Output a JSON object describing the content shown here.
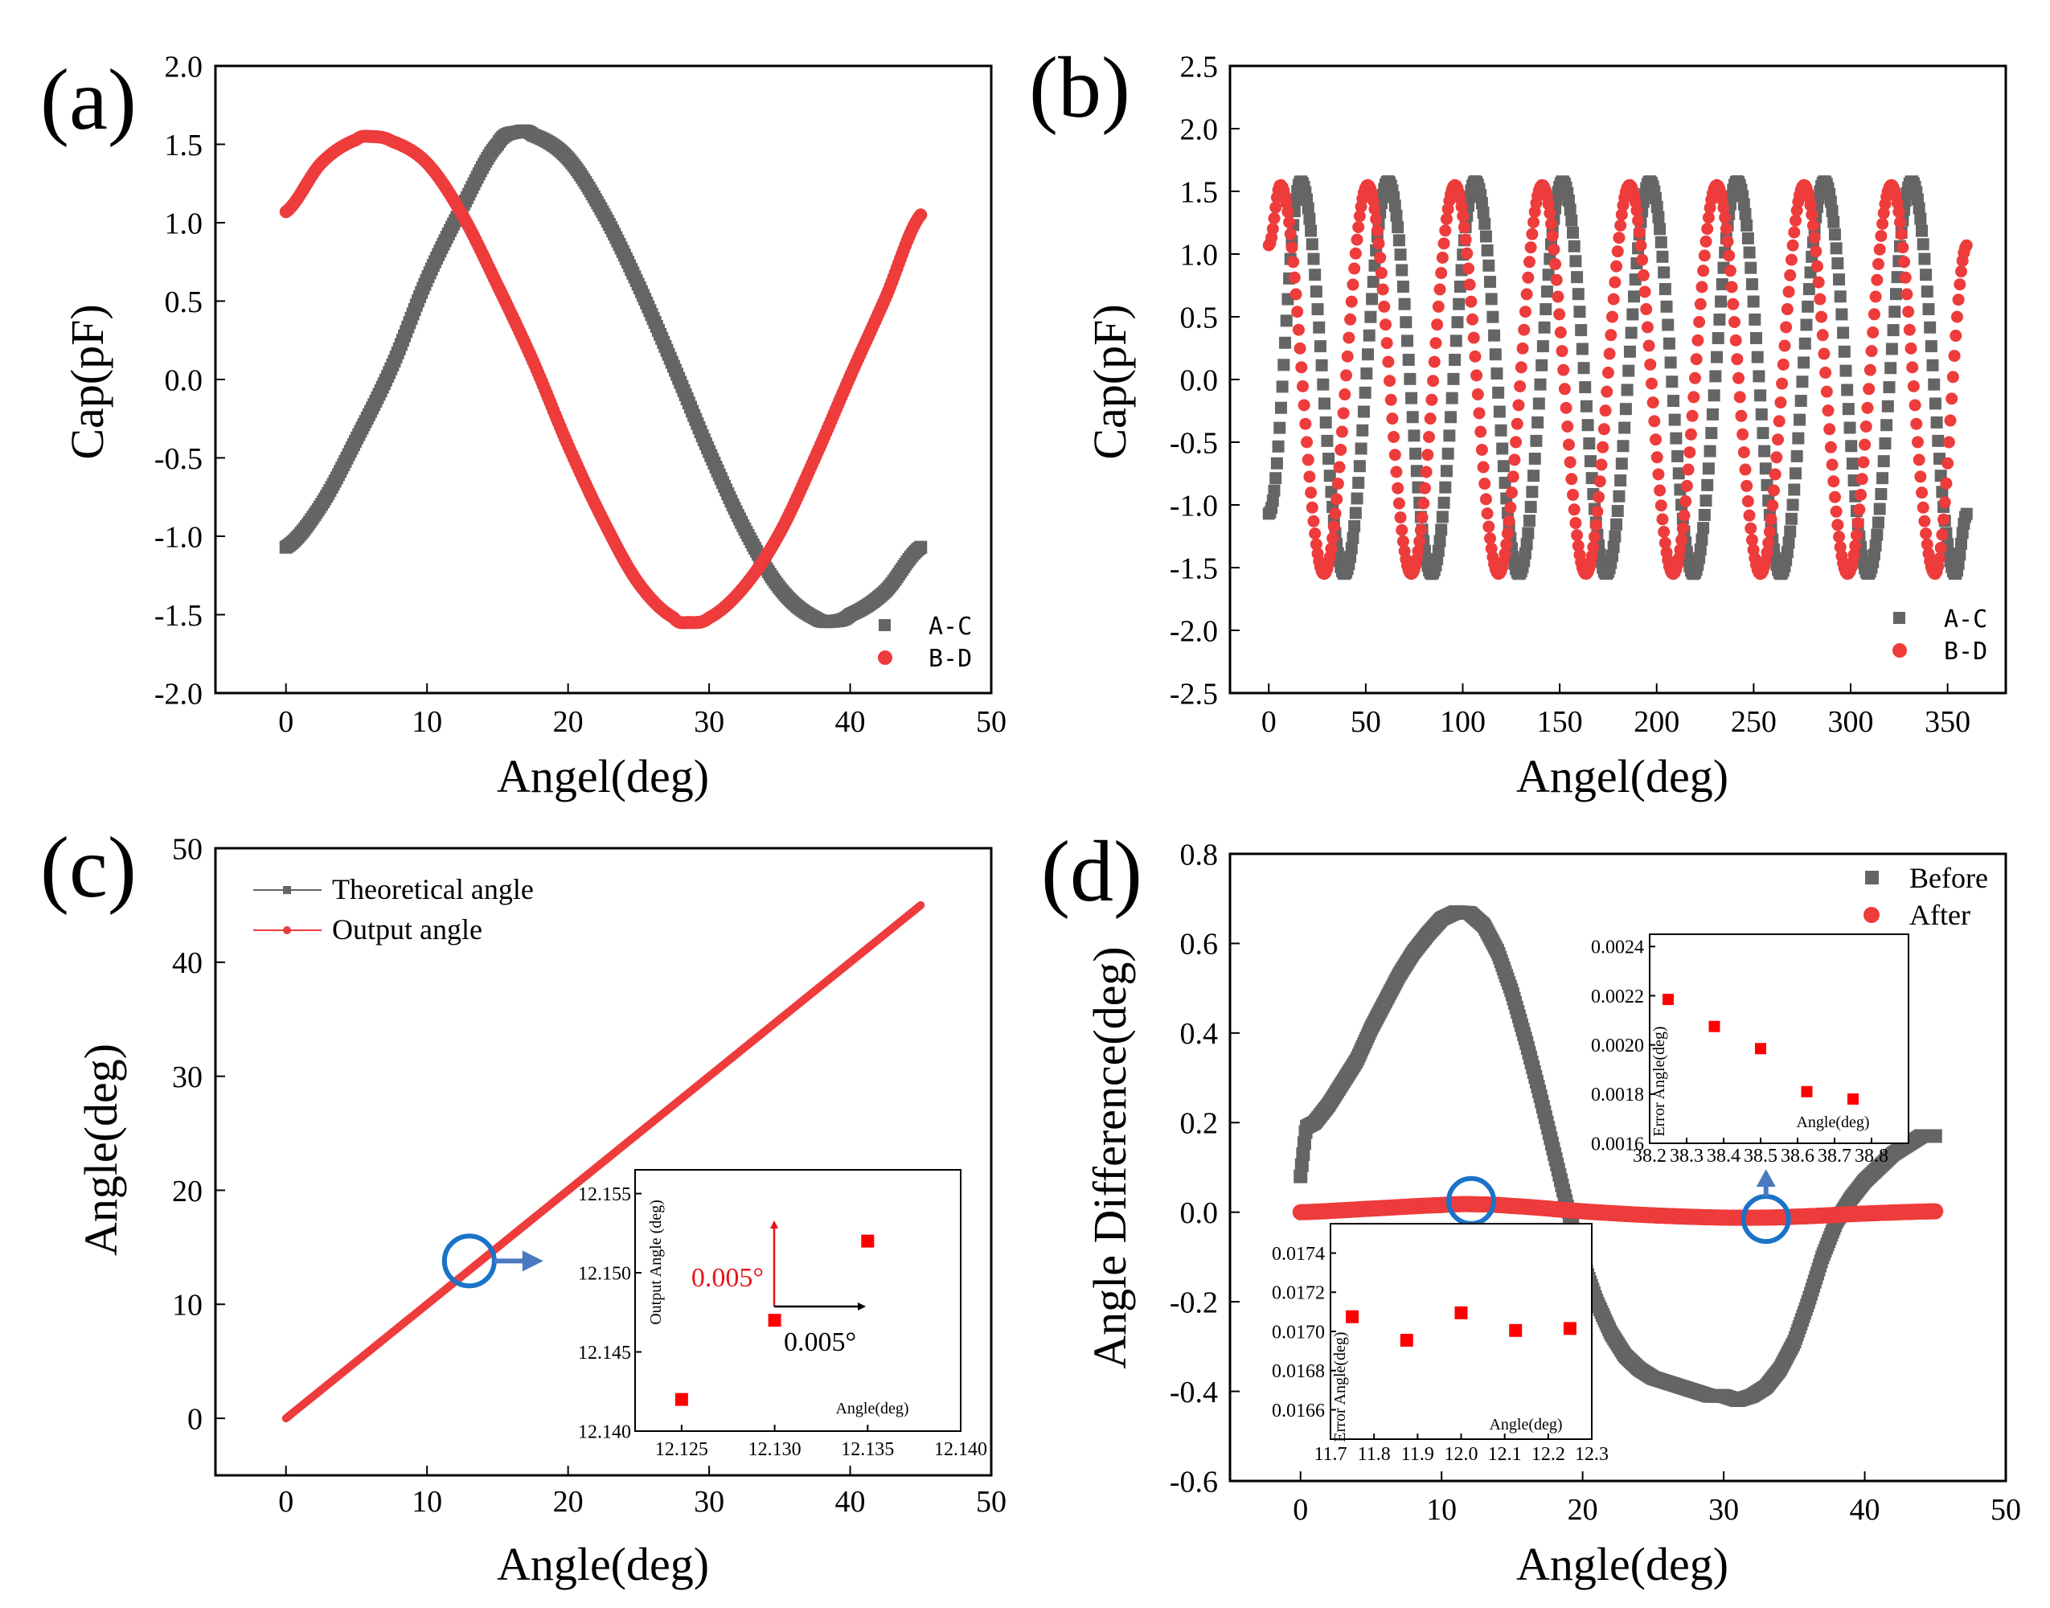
{
  "colors": {
    "gray": "#656565",
    "red": "#EE3B3B",
    "inset_red": "#FF0000",
    "circle_blue": "#1A73C8",
    "arrow_blue": "#4A78C2",
    "ann_red": "#E8141B",
    "black": "#000000"
  },
  "chart_data": [
    {
      "id": "a",
      "panel_label": "(a)",
      "type": "scatter",
      "xlabel": "Angel(deg)",
      "ylabel": "Cap(pF)",
      "xlim": [
        -5,
        50
      ],
      "ylim": [
        -2.0,
        2.0
      ],
      "xticks": [
        "0",
        "10",
        "20",
        "30",
        "40",
        "50"
      ],
      "yticks": [
        "-2.0",
        "-1.5",
        "-1.0",
        "-0.5",
        "0.0",
        "0.5",
        "1.0",
        "1.5",
        "2.0"
      ],
      "legend_position": "bottom-right",
      "series": [
        {
          "name": "A-C",
          "marker": "square",
          "color": "gray",
          "x": [
            0,
            2.5,
            5,
            7.5,
            10,
            12.5,
            15,
            16.5,
            17.5,
            20,
            22.5,
            25,
            27.5,
            30,
            32.5,
            35,
            37.5,
            39,
            40,
            42.5,
            45
          ],
          "y": [
            -1.07,
            -0.8,
            -0.38,
            0.08,
            0.64,
            1.1,
            1.5,
            1.58,
            1.56,
            1.41,
            1.06,
            0.6,
            0.08,
            -0.46,
            -0.95,
            -1.33,
            -1.52,
            -1.54,
            -1.5,
            -1.35,
            -1.07
          ]
        },
        {
          "name": "B-D",
          "marker": "circle",
          "color": "red",
          "x": [
            0,
            2.5,
            5,
            6,
            7.5,
            10,
            12.5,
            15,
            17.5,
            20,
            22.5,
            25,
            27.5,
            28.5,
            30,
            32.5,
            35,
            37.5,
            40,
            42.5,
            45
          ],
          "y": [
            1.07,
            1.38,
            1.53,
            1.55,
            1.52,
            1.38,
            1.05,
            0.6,
            0.12,
            -0.42,
            -0.9,
            -1.3,
            -1.52,
            -1.55,
            -1.52,
            -1.32,
            -0.98,
            -0.5,
            0.02,
            0.52,
            1.05
          ]
        }
      ]
    },
    {
      "id": "b",
      "panel_label": "(b)",
      "type": "scatter",
      "xlabel": "Angel(deg)",
      "ylabel": "Cap(pF)",
      "xlim": [
        -20,
        380
      ],
      "ylim": [
        -2.5,
        2.5
      ],
      "xticks": [
        "0",
        "50",
        "100",
        "150",
        "200",
        "250",
        "300",
        "350"
      ],
      "yticks": [
        "-2.5",
        "-2.0",
        "-1.5",
        "-1.0",
        "-0.5",
        "0.0",
        "0.5",
        "1.0",
        "1.5",
        "2.0",
        "2.5"
      ],
      "legend_position": "bottom-right",
      "series": [
        {
          "name": "A-C",
          "marker": "square",
          "color": "gray",
          "x": [
            0,
            16.5,
            39,
            61.5,
            84,
            106.5,
            129,
            151.5,
            174,
            196.5,
            219,
            241.5,
            264,
            286.5,
            309,
            331.5,
            354,
            360
          ],
          "y": [
            -1.07,
            1.58,
            -1.55,
            1.58,
            -1.55,
            1.58,
            -1.55,
            1.58,
            -1.55,
            1.58,
            -1.55,
            1.58,
            -1.55,
            1.58,
            -1.55,
            1.58,
            -1.55,
            -1.07
          ]
        },
        {
          "name": "B-D",
          "marker": "circle",
          "color": "red",
          "x": [
            0,
            6,
            28.5,
            51,
            73.5,
            96,
            118.5,
            141,
            163.5,
            186,
            208.5,
            231,
            253.5,
            276,
            298.5,
            321,
            343.5,
            360
          ],
          "y": [
            1.07,
            1.55,
            -1.55,
            1.55,
            -1.55,
            1.55,
            -1.55,
            1.55,
            -1.55,
            1.55,
            -1.55,
            1.55,
            -1.55,
            1.55,
            -1.55,
            1.55,
            -1.55,
            1.07
          ]
        }
      ]
    },
    {
      "id": "c",
      "panel_label": "(c)",
      "type": "line",
      "xlabel": "Angle(deg)",
      "ylabel": "Angle(deg)",
      "xlim": [
        -5,
        50
      ],
      "ylim": [
        -5,
        50
      ],
      "xticks": [
        "0",
        "10",
        "20",
        "30",
        "40",
        "50"
      ],
      "yticks": [
        "0",
        "10",
        "20",
        "30",
        "40",
        "50"
      ],
      "legend_position": "top-left",
      "series": [
        {
          "name": "Theoretical angle",
          "marker": "square",
          "color": "gray",
          "x": [
            0,
            45
          ],
          "y": [
            0,
            45
          ]
        },
        {
          "name": "Output angle",
          "marker": "circle",
          "color": "red",
          "x": [
            0,
            45
          ],
          "y": [
            0,
            45
          ]
        }
      ],
      "highlight": {
        "x": 13,
        "y": 13.8
      },
      "inset": {
        "xlabel": "Angle(deg)",
        "ylabel": "Output Angle (deg)",
        "xlim": [
          12.1225,
          12.14
        ],
        "ylim": [
          12.14,
          12.1565
        ],
        "xticks": [
          "12.125",
          "12.130",
          "12.135",
          "12.140"
        ],
        "yticks": [
          "12.140",
          "12.145",
          "12.150",
          "12.155"
        ],
        "points": {
          "x": [
            12.125,
            12.13,
            12.135
          ],
          "y": [
            12.142,
            12.147,
            12.152
          ]
        },
        "annotations": {
          "vertical": "0.005°",
          "horizontal": "0.005°"
        }
      }
    },
    {
      "id": "d",
      "panel_label": "(d)",
      "type": "scatter",
      "xlabel": "Angle(deg)",
      "ylabel": "Angle Difference(deg)",
      "xlim": [
        -5,
        50
      ],
      "ylim": [
        -0.6,
        0.8
      ],
      "xticks": [
        "0",
        "10",
        "20",
        "30",
        "40",
        "50"
      ],
      "yticks": [
        "-0.6",
        "-0.4",
        "-0.2",
        "0.0",
        "0.2",
        "0.4",
        "0.6",
        "0.8"
      ],
      "legend_position": "top-right",
      "series": [
        {
          "name": "Before",
          "marker": "square",
          "color": "gray",
          "x": [
            0,
            0.4,
            1,
            2,
            3,
            4,
            5,
            6,
            7,
            8,
            9,
            10,
            11,
            12,
            13,
            14,
            15,
            16,
            17,
            18,
            19,
            20,
            21,
            22,
            23,
            24,
            25,
            26,
            27,
            28,
            29,
            30,
            31,
            32,
            33,
            34,
            35,
            36,
            37,
            38,
            39,
            40,
            41,
            42,
            43,
            44,
            45
          ],
          "y": [
            0.08,
            0.19,
            0.2,
            0.24,
            0.29,
            0.34,
            0.41,
            0.47,
            0.53,
            0.58,
            0.62,
            0.655,
            0.67,
            0.668,
            0.64,
            0.58,
            0.49,
            0.38,
            0.26,
            0.13,
            0.0,
            -0.11,
            -0.2,
            -0.27,
            -0.32,
            -0.35,
            -0.37,
            -0.38,
            -0.39,
            -0.4,
            -0.41,
            -0.41,
            -0.42,
            -0.41,
            -0.39,
            -0.35,
            -0.29,
            -0.2,
            -0.1,
            -0.02,
            0.03,
            0.07,
            0.1,
            0.13,
            0.15,
            0.17,
            0.17
          ]
        },
        {
          "name": "After",
          "marker": "circle",
          "color": "red",
          "x": [
            0,
            5,
            10,
            12,
            15,
            20,
            25,
            30,
            33,
            35,
            40,
            45
          ],
          "y": [
            0.0,
            0.008,
            0.016,
            0.018,
            0.014,
            0.002,
            -0.007,
            -0.012,
            -0.012,
            -0.01,
            -0.003,
            0.002
          ]
        }
      ],
      "highlights": [
        {
          "x": 12.1,
          "y": 0.025
        },
        {
          "x": 33,
          "y": -0.015
        }
      ],
      "inset_top": {
        "xlabel": "Angle(deg)",
        "ylabel": "Error Angle(deg)",
        "xlim": [
          38.2,
          38.9
        ],
        "ylim": [
          0.0016,
          0.00245
        ],
        "xticks": [
          "38.2",
          "38.3",
          "38.4",
          "38.5",
          "38.6",
          "38.7",
          "38.8"
        ],
        "yticks": [
          "0.0016",
          "0.0018",
          "0.0020",
          "0.0022",
          "0.0024"
        ],
        "points": {
          "x": [
            38.25,
            38.375,
            38.5,
            38.625,
            38.75
          ],
          "y": [
            0.002185,
            0.002075,
            0.001985,
            0.00181,
            0.00178
          ]
        }
      },
      "inset_bottom": {
        "xlabel": "Angle(deg)",
        "ylabel": "Error Angle(deg)",
        "xlim": [
          11.7,
          12.3
        ],
        "ylim": [
          0.01645,
          0.01755
        ],
        "xticks": [
          "11.7",
          "11.8",
          "11.9",
          "12.0",
          "12.1",
          "12.2",
          "12.3"
        ],
        "yticks": [
          "0.0166",
          "0.0168",
          "0.0170",
          "0.0172",
          "0.0174"
        ],
        "points": {
          "x": [
            11.75,
            11.875,
            12.0,
            12.125,
            12.25
          ],
          "y": [
            0.017075,
            0.016955,
            0.017095,
            0.017005,
            0.017015
          ]
        }
      }
    }
  ]
}
